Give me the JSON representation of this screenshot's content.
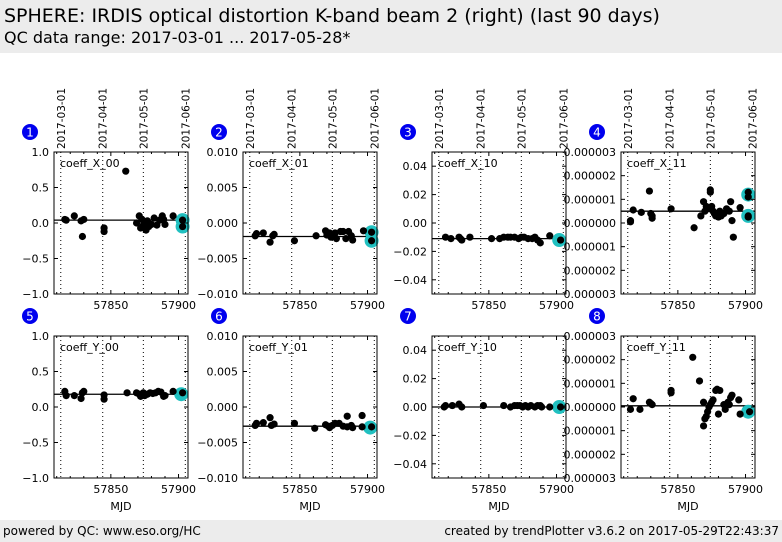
{
  "header": {
    "title": "SPHERE: IRDIS optical distortion K-band beam 2 (right) (last 90 days)",
    "subtitle": "QC data range: 2017-03-01 ... 2017-05-28*"
  },
  "footer": {
    "left": "powered by QC: www.eso.org/HC",
    "right": "created by trendPlotter v3.6.2 on 2017-05-29T22:43:37"
  },
  "colors": {
    "badge": "#0000ee",
    "point": "#000000",
    "highlight": "#20c0c0",
    "frame": "#000000"
  },
  "date_markers": [
    {
      "label": "2017-03-01",
      "mjd": 57813
    },
    {
      "label": "2017-04-01",
      "mjd": 57844
    },
    {
      "label": "2017-05-01",
      "mjd": 57874
    },
    {
      "label": "2017-06-01",
      "mjd": 57905
    }
  ],
  "chart_data": [
    {
      "type": "scatter",
      "panel": "1",
      "label": "coeff_X_00",
      "xlabel": "",
      "xlim": [
        57808,
        57907
      ],
      "ylim": [
        -1.0,
        1.0
      ],
      "xticks": [
        57850,
        57900
      ],
      "yticks": [
        "1.0",
        "0.5",
        "0.0",
        "−0.5",
        "−1.0"
      ],
      "ytick_values": [
        1.0,
        0.5,
        0.0,
        -0.5,
        -1.0
      ],
      "reference_line": 0.04,
      "points": [
        [
          57816,
          0.05
        ],
        [
          57817,
          0.04
        ],
        [
          57823,
          0.1
        ],
        [
          57828,
          0.03
        ],
        [
          57829,
          -0.19
        ],
        [
          57830,
          0.05
        ],
        [
          57845,
          -0.07
        ],
        [
          57845,
          -0.12
        ],
        [
          57861,
          0.73
        ],
        [
          57869,
          0.0
        ],
        [
          57871,
          0.1
        ],
        [
          57872,
          -0.07
        ],
        [
          57873,
          0.05
        ],
        [
          57874,
          -0.03
        ],
        [
          57875,
          0.02
        ],
        [
          57876,
          -0.1
        ],
        [
          57877,
          0.03
        ],
        [
          57878,
          -0.05
        ],
        [
          57880,
          -0.02
        ],
        [
          57882,
          0.07
        ],
        [
          57884,
          -0.03
        ],
        [
          57886,
          0.04
        ],
        [
          57888,
          0.1
        ],
        [
          57889,
          0.05
        ],
        [
          57890,
          -0.02
        ],
        [
          57896,
          0.1
        ],
        [
          57903,
          0.04
        ],
        [
          57903,
          -0.05
        ]
      ],
      "highlight": [
        [
          57903,
          0.04
        ],
        [
          57903,
          -0.05
        ]
      ]
    },
    {
      "type": "scatter",
      "panel": "2",
      "label": "coeff_X_01",
      "xlabel": "",
      "xlim": [
        57808,
        57907
      ],
      "ylim": [
        -0.01,
        0.01
      ],
      "xticks": [
        57850,
        57900
      ],
      "yticks": [
        "0.010",
        "0.005",
        "0.000",
        "−0.005",
        "−0.010"
      ],
      "ytick_values": [
        0.01,
        0.005,
        0.0,
        -0.005,
        -0.01
      ],
      "reference_line": -0.0019,
      "points": [
        [
          57817,
          -0.0018
        ],
        [
          57818,
          -0.0015
        ],
        [
          57823,
          -0.0014
        ],
        [
          57828,
          -0.0027
        ],
        [
          57830,
          -0.0018
        ],
        [
          57831,
          -0.0016
        ],
        [
          57846,
          -0.0025
        ],
        [
          57862,
          -0.0018
        ],
        [
          57869,
          -0.0011
        ],
        [
          57870,
          -0.0017
        ],
        [
          57872,
          -0.0014
        ],
        [
          57873,
          -0.002
        ],
        [
          57876,
          -0.0014
        ],
        [
          57877,
          -0.0022
        ],
        [
          57880,
          -0.0012
        ],
        [
          57882,
          -0.0012
        ],
        [
          57884,
          -0.0022
        ],
        [
          57886,
          -0.0012
        ],
        [
          57888,
          -0.0018
        ],
        [
          57889,
          -0.0024
        ],
        [
          57897,
          -0.0011
        ],
        [
          57903,
          -0.0013
        ],
        [
          57903,
          -0.0025
        ]
      ],
      "highlight": [
        [
          57903,
          -0.0013
        ],
        [
          57903,
          -0.0025
        ]
      ]
    },
    {
      "type": "scatter",
      "panel": "3",
      "label": "coeff_X_10",
      "xlabel": "",
      "xlim": [
        57808,
        57907
      ],
      "ylim": [
        -0.05,
        0.05
      ],
      "xticks": [
        57850,
        57900
      ],
      "yticks": [
        "0.04",
        "0.02",
        "0.00",
        "−0.02",
        "−0.04"
      ],
      "ytick_values": [
        0.04,
        0.02,
        0.0,
        -0.02,
        -0.04
      ],
      "reference_line": -0.011,
      "points": [
        [
          57818,
          -0.01
        ],
        [
          57822,
          -0.011
        ],
        [
          57828,
          -0.01
        ],
        [
          57829,
          -0.011
        ],
        [
          57830,
          -0.012
        ],
        [
          57836,
          -0.01
        ],
        [
          57852,
          -0.011
        ],
        [
          57858,
          -0.011
        ],
        [
          57861,
          -0.01
        ],
        [
          57864,
          -0.01
        ],
        [
          57866,
          -0.01
        ],
        [
          57869,
          -0.01
        ],
        [
          57872,
          -0.011
        ],
        [
          57874,
          -0.01
        ],
        [
          57876,
          -0.01
        ],
        [
          57879,
          -0.011
        ],
        [
          57882,
          -0.011
        ],
        [
          57884,
          -0.01
        ],
        [
          57886,
          -0.012
        ],
        [
          57888,
          -0.014
        ],
        [
          57895,
          -0.009
        ],
        [
          57903,
          -0.012
        ]
      ],
      "highlight": [
        [
          57902,
          -0.012
        ]
      ]
    },
    {
      "type": "scatter",
      "panel": "4",
      "label": "coeff_X_11",
      "xlabel": "",
      "xlim": [
        57808,
        57907
      ],
      "ylim": [
        -3e-06,
        3e-06
      ],
      "xticks": [
        57850,
        57900
      ],
      "yticks": [
        "0.000003",
        "0.000002",
        "0.000001",
        "0.000000",
        "0.000001",
        "0.000002",
        "0.000003"
      ],
      "ytick_values": [
        3e-06,
        2e-06,
        1e-06,
        0.0,
        -1e-06,
        -2e-06,
        -3e-06
      ],
      "reference_line": 5e-07,
      "points": [
        [
          57815,
          1e-07
        ],
        [
          57815,
          5e-08
        ],
        [
          57817,
          5.5e-07
        ],
        [
          57823,
          4.5e-07
        ],
        [
          57829,
          1.35e-06
        ],
        [
          57830,
          4e-07
        ],
        [
          57831,
          2e-07
        ],
        [
          57831,
          3e-07
        ],
        [
          57845,
          6e-07
        ],
        [
          57862,
          -2e-07
        ],
        [
          57867,
          3e-07
        ],
        [
          57869,
          9e-07
        ],
        [
          57870,
          5e-07
        ],
        [
          57871,
          7e-07
        ],
        [
          57872,
          6e-07
        ],
        [
          57874,
          1.3e-06
        ],
        [
          57874,
          1.4e-06
        ],
        [
          57875,
          7e-07
        ],
        [
          57876,
          5e-07
        ],
        [
          57877,
          4e-07
        ],
        [
          57878,
          3e-07
        ],
        [
          57880,
          2.5e-07
        ],
        [
          57881,
          5e-07
        ],
        [
          57882,
          3e-07
        ],
        [
          57884,
          4e-07
        ],
        [
          57886,
          6e-07
        ],
        [
          57888,
          5e-07
        ],
        [
          57889,
          9e-07
        ],
        [
          57890,
          1e-07
        ],
        [
          57891,
          -6e-07
        ],
        [
          57896,
          6.5e-07
        ],
        [
          57902,
          1.1e-06
        ],
        [
          57902,
          1.3e-06
        ],
        [
          57902,
          3e-07
        ],
        [
          57902,
          2.5e-07
        ]
      ],
      "highlight": [
        [
          57902,
          1.2e-06
        ],
        [
          57902,
          3e-07
        ]
      ]
    },
    {
      "type": "scatter",
      "panel": "5",
      "label": "coeff_Y_00",
      "xlabel": "MJD",
      "xlim": [
        57808,
        57907
      ],
      "ylim": [
        -1.0,
        1.0
      ],
      "xticks": [
        57850,
        57900
      ],
      "yticks": [
        "1.0",
        "0.5",
        "0.0",
        "−0.5",
        "−1.0"
      ],
      "ytick_values": [
        1.0,
        0.5,
        0.0,
        -0.5,
        -1.0
      ],
      "reference_line": 0.18,
      "points": [
        [
          57816,
          0.22
        ],
        [
          57817,
          0.16
        ],
        [
          57823,
          0.16
        ],
        [
          57828,
          0.12
        ],
        [
          57829,
          0.2
        ],
        [
          57830,
          0.22
        ],
        [
          57845,
          0.17
        ],
        [
          57845,
          0.11
        ],
        [
          57862,
          0.2
        ],
        [
          57869,
          0.2
        ],
        [
          57871,
          0.18
        ],
        [
          57872,
          0.15
        ],
        [
          57874,
          0.2
        ],
        [
          57875,
          0.16
        ],
        [
          57877,
          0.18
        ],
        [
          57879,
          0.2
        ],
        [
          57881,
          0.19
        ],
        [
          57883,
          0.2
        ],
        [
          57885,
          0.22
        ],
        [
          57887,
          0.21
        ],
        [
          57889,
          0.15
        ],
        [
          57890,
          0.16
        ],
        [
          57896,
          0.22
        ],
        [
          57903,
          0.2
        ]
      ],
      "highlight": [
        [
          57902,
          0.18
        ]
      ]
    },
    {
      "type": "scatter",
      "panel": "6",
      "label": "coeff_Y_01",
      "xlabel": "MJD",
      "xlim": [
        57808,
        57907
      ],
      "ylim": [
        -0.01,
        0.01
      ],
      "xticks": [
        57850,
        57900
      ],
      "yticks": [
        "0.010",
        "0.005",
        "0.000",
        "−0.005",
        "−0.010"
      ],
      "ytick_values": [
        0.01,
        0.005,
        0.0,
        -0.005,
        -0.01
      ],
      "reference_line": -0.0027,
      "points": [
        [
          57817,
          -0.0026
        ],
        [
          57818,
          -0.0023
        ],
        [
          57823,
          -0.0022
        ],
        [
          57828,
          -0.0015
        ],
        [
          57829,
          -0.0026
        ],
        [
          57831,
          -0.0024
        ],
        [
          57846,
          -0.0023
        ],
        [
          57861,
          -0.003
        ],
        [
          57869,
          -0.0025
        ],
        [
          57871,
          -0.0027
        ],
        [
          57872,
          -0.0029
        ],
        [
          57874,
          -0.0026
        ],
        [
          57876,
          -0.0023
        ],
        [
          57879,
          -0.0023
        ],
        [
          57882,
          -0.0027
        ],
        [
          57885,
          -0.0013
        ],
        [
          57885,
          -0.0028
        ],
        [
          57888,
          -0.0026
        ],
        [
          57889,
          -0.0029
        ],
        [
          57896,
          -0.0012
        ],
        [
          57896,
          -0.0028
        ],
        [
          57903,
          -0.0028
        ]
      ],
      "highlight": [
        [
          57902,
          -0.0029
        ]
      ]
    },
    {
      "type": "scatter",
      "panel": "7",
      "label": "coeff_Y_10",
      "xlabel": "MJD",
      "xlim": [
        57808,
        57907
      ],
      "ylim": [
        -0.05,
        0.05
      ],
      "xticks": [
        57850,
        57900
      ],
      "yticks": [
        "0.04",
        "0.02",
        "0.00",
        "−0.02",
        "−0.04"
      ],
      "ytick_values": [
        0.04,
        0.02,
        0.0,
        -0.02,
        -0.04
      ],
      "reference_line": 0.0,
      "points": [
        [
          57817,
          0.0
        ],
        [
          57818,
          0.001
        ],
        [
          57823,
          0.001
        ],
        [
          57828,
          0.002
        ],
        [
          57830,
          0.0
        ],
        [
          57846,
          0.001
        ],
        [
          57861,
          0.001
        ],
        [
          57866,
          0.0
        ],
        [
          57869,
          0.001
        ],
        [
          57871,
          0.001
        ],
        [
          57873,
          0.001
        ],
        [
          57875,
          0.0
        ],
        [
          57877,
          0.001
        ],
        [
          57879,
          0.0
        ],
        [
          57881,
          0.001
        ],
        [
          57884,
          0.0
        ],
        [
          57886,
          0.001
        ],
        [
          57888,
          0.001
        ],
        [
          57889,
          0.0
        ],
        [
          57895,
          0.0
        ],
        [
          57903,
          0.0
        ]
      ],
      "highlight": [
        [
          57902,
          0.0
        ]
      ]
    },
    {
      "type": "scatter",
      "panel": "8",
      "label": "coeff_Y_11",
      "xlabel": "MJD",
      "xlim": [
        57808,
        57907
      ],
      "ylim": [
        -3e-06,
        3e-06
      ],
      "xticks": [
        57850,
        57900
      ],
      "yticks": [
        "0.000003",
        "0.000002",
        "0.000001",
        "0.000000",
        "0.000001",
        "0.000002",
        "0.000003"
      ],
      "ytick_values": [
        3e-06,
        2e-06,
        1e-06,
        0.0,
        -1e-06,
        -2e-06,
        -3e-06
      ],
      "reference_line": 5e-08,
      "points": [
        [
          57815,
          -1e-07
        ],
        [
          57817,
          3.5e-07
        ],
        [
          57822,
          -1e-07
        ],
        [
          57829,
          2e-07
        ],
        [
          57830,
          1.5e-07
        ],
        [
          57831,
          1e-07
        ],
        [
          57845,
          7e-07
        ],
        [
          57845,
          6e-07
        ],
        [
          57861,
          2.1e-06
        ],
        [
          57866,
          1.1e-06
        ],
        [
          57869,
          2e-07
        ],
        [
          57869,
          -8e-07
        ],
        [
          57870,
          -5e-07
        ],
        [
          57871,
          -4e-07
        ],
        [
          57872,
          -2e-07
        ],
        [
          57873,
          0.0
        ],
        [
          57874,
          1e-07
        ],
        [
          57875,
          2e-07
        ],
        [
          57876,
          3e-07
        ],
        [
          57878,
          7e-07
        ],
        [
          57879,
          7.5e-07
        ],
        [
          57880,
          -3e-07
        ],
        [
          57881,
          7e-07
        ],
        [
          57884,
          1e-07
        ],
        [
          57885,
          -1e-07
        ],
        [
          57887,
          2e-07
        ],
        [
          57888,
          1e-07
        ],
        [
          57889,
          4e-07
        ],
        [
          57890,
          5e-07
        ],
        [
          57895,
          3e-07
        ],
        [
          57896,
          -3e-07
        ],
        [
          57903,
          -2e-07
        ]
      ],
      "highlight": [
        [
          57902,
          -2e-07
        ]
      ]
    }
  ]
}
